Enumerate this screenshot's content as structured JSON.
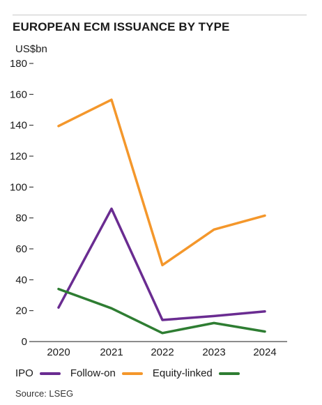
{
  "header": {
    "title": "EUROPEAN ECM ISSUANCE BY TYPE",
    "unit": "US$bn"
  },
  "chart_data": {
    "type": "line",
    "title": "EUROPEAN ECM ISSUANCE BY TYPE",
    "ylabel": "US$bn",
    "xlabel": "",
    "x": [
      "2020",
      "2021",
      "2022",
      "2023",
      "2024"
    ],
    "ylim": [
      0,
      180
    ],
    "yticks": [
      0,
      20,
      40,
      60,
      80,
      100,
      120,
      140,
      160,
      180
    ],
    "grid": false,
    "legend_position": "bottom",
    "series": [
      {
        "name": "IPO",
        "color": "#6a2c91",
        "values": [
          22,
          86,
          14,
          16.5,
          19.5
        ]
      },
      {
        "name": "Follow-on",
        "color": "#f4972b",
        "values": [
          139.5,
          156.5,
          49.5,
          72.5,
          81.5
        ]
      },
      {
        "name": "Equity-linked",
        "color": "#2e7d32",
        "values": [
          34,
          21.5,
          5.5,
          12,
          6.5
        ]
      }
    ]
  },
  "legend": {
    "items": [
      {
        "label": "IPO",
        "color": "#6a2c91"
      },
      {
        "label": "Follow-on",
        "color": "#f4972b"
      },
      {
        "label": "Equity-linked",
        "color": "#2e7d32"
      }
    ]
  },
  "footer": {
    "source": "Source: LSEG"
  }
}
